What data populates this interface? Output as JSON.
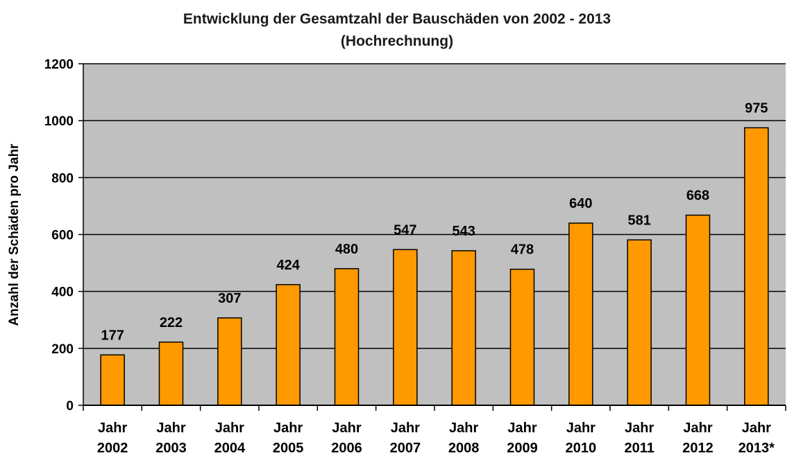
{
  "chart_data": {
    "type": "bar",
    "title": "Entwicklung der Gesamtzahl der Bauschäden von 2002 - 2013",
    "subtitle": "(Hochrechnung)",
    "xlabel": "",
    "ylabel": "Anzahl der Schäden pro Jahr",
    "categories": [
      [
        "Jahr",
        "2002"
      ],
      [
        "Jahr",
        "2003"
      ],
      [
        "Jahr",
        "2004"
      ],
      [
        "Jahr",
        "2005"
      ],
      [
        "Jahr",
        "2006"
      ],
      [
        "Jahr",
        "2007"
      ],
      [
        "Jahr",
        "2008"
      ],
      [
        "Jahr",
        "2009"
      ],
      [
        "Jahr",
        "2010"
      ],
      [
        "Jahr",
        "2011"
      ],
      [
        "Jahr",
        "2012"
      ],
      [
        "Jahr",
        "2013*"
      ]
    ],
    "values": [
      177,
      222,
      307,
      424,
      480,
      547,
      543,
      478,
      640,
      581,
      668,
      975
    ],
    "data_labels": [
      "177",
      "222",
      "307",
      "424",
      "480",
      "547",
      "543",
      "478",
      "640",
      "581",
      "668",
      "975"
    ],
    "ylim": [
      0,
      1200
    ],
    "yticks": [
      0,
      200,
      400,
      600,
      800,
      1000,
      1200
    ],
    "grid": true,
    "legend": "none",
    "colors": {
      "bar_fill": "#FF9900",
      "bar_stroke": "#000000",
      "plot_background": "#C0C0C0",
      "gridline": "#000000"
    }
  }
}
